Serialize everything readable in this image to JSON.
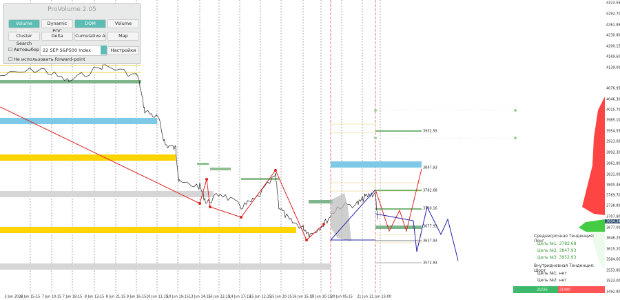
{
  "panel": {
    "title": "ProVolume 2.05",
    "buttons": [
      "Volume Profile",
      "Dynamic POC",
      "DOM",
      "Volume",
      "Cluster Search",
      "Delta",
      "Cumulative Δ",
      "Map"
    ],
    "auto_label": "Автовыбор",
    "instrument": "22 SEP S&P500 Index",
    "settings": "Настройки",
    "forward_label": "Не использовать forward-point"
  },
  "price_axis": [
    "4323.55",
    "4292.70",
    "4261.85",
    "4230.80",
    "4200.15",
    "4169.60",
    "4139.00",
    "4076.95",
    "4046.30",
    "4015.70",
    "3985.10",
    "3954.55",
    "3923.00",
    "3892.30",
    "3861.80",
    "3831.00",
    "3800.45",
    "3769.70",
    "3738.80",
    "3707.90",
    "3694.34",
    "3677.00",
    "3646.25",
    "3615.20",
    "3584.60",
    "3553.80",
    "3523.00",
    "3492.80"
  ],
  "time_axis": [
    "3 Jun 2022",
    "6 Jun 15:15",
    "7 Jun 10:15",
    "7 Jun 18:15",
    "8 Jun 13:15",
    "8 Jun 21:15",
    "9 Jun 16:15",
    "10 Jun 11:15",
    "10 Jun 19:15",
    "13 Jun 14:15",
    "13 Jun 22:15",
    "14 Jun 17:15",
    "15 Jun 12:15",
    "15 Jun 20:15",
    "16 Jun 15:15",
    "17 Jun 10:15",
    "20 Jun 05:15",
    "21 Jun",
    "21 Jun 23:00"
  ],
  "levels": [
    "3952.93",
    "3847.93",
    "3782.68",
    "3730.16",
    "3677.93",
    "3637.93",
    "3572.93"
  ],
  "info": {
    "mid_title": "Среднесрочная Тенденция: Лонг",
    "mid_targets": [
      "Цель №1: 3782.68",
      "Цель №2: 3847.93",
      "Цель №3: 3952.93"
    ],
    "intra_title": "Внутридневная Тенденция: Шорт",
    "intra_targets": [
      "Цель №1: нет",
      "Цель №2: нет"
    ]
  },
  "counter": [
    "21025",
    "21440"
  ]
}
